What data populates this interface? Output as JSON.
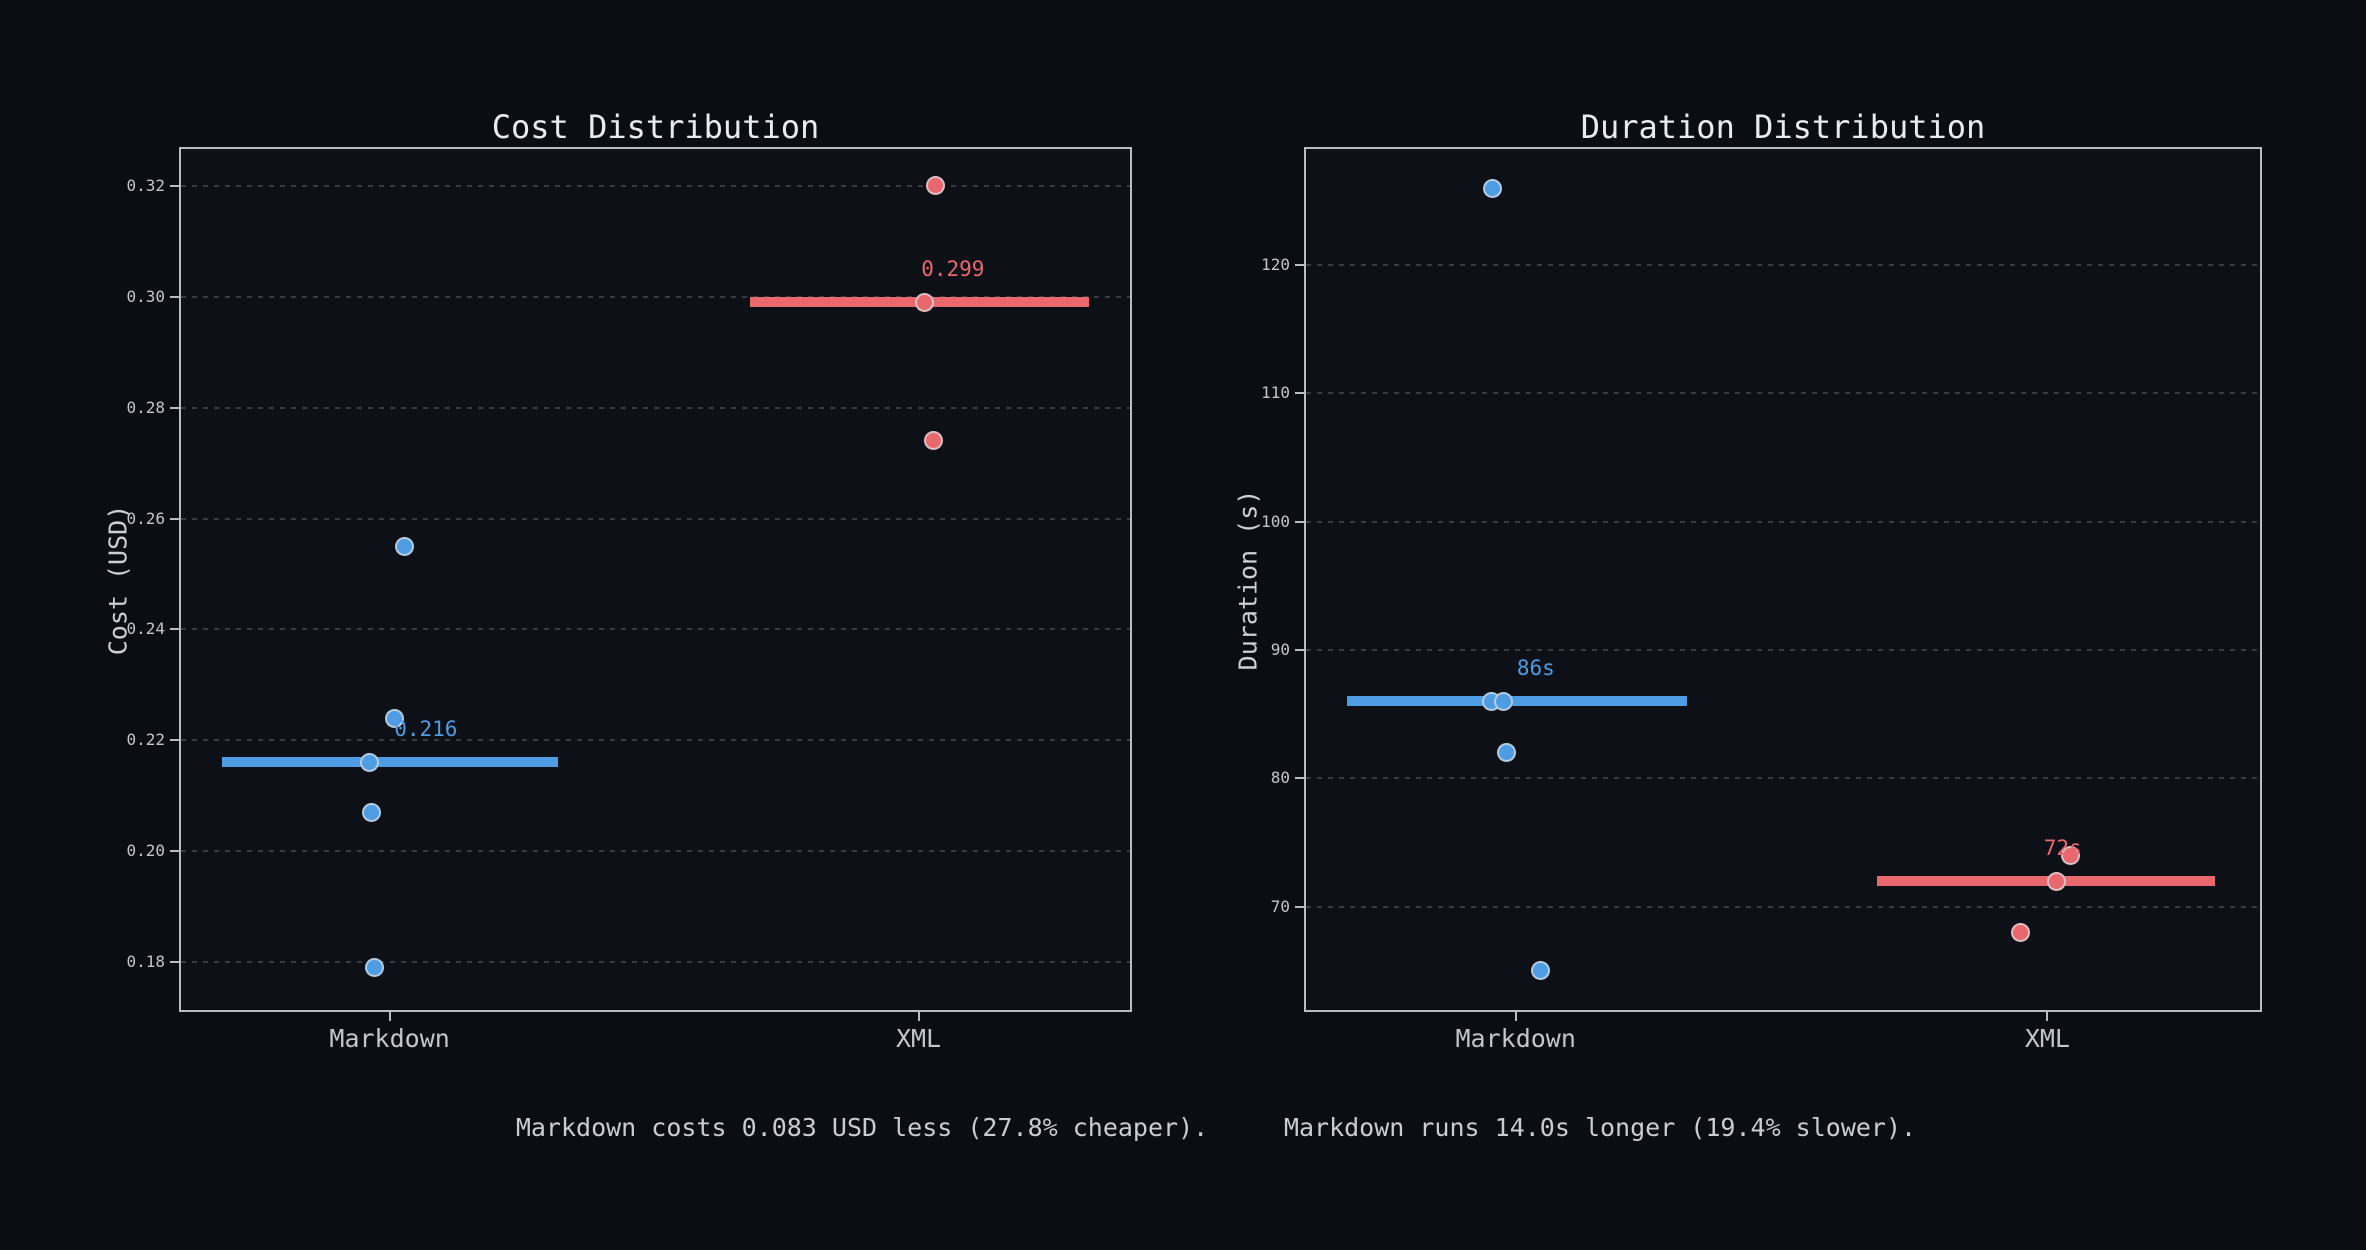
{
  "colors": {
    "figure_bg": "#0a0d12",
    "axes_bg": "#0d1117",
    "spine": "#b9bdc2",
    "grid": "#3b4046",
    "title": "#e9ecee",
    "tick_label": "#c2c6ca",
    "axis_label": "#ccd0d3",
    "summary_text": "#c9cdd0",
    "blue": "#4d9ce4",
    "red": "#e8686d",
    "point_border": "#d8dcdf"
  },
  "summary": {
    "cost_text": "Markdown costs 0.083 USD less (27.8% cheaper).",
    "duration_text": "Markdown runs 14.0s longer (19.4% slower)."
  },
  "chart_data": [
    {
      "type": "scatter",
      "title": "Cost Distribution",
      "ylabel": "Cost (USD)",
      "xlabel": "",
      "grid": true,
      "legend": "none",
      "ylim": [
        0.171,
        0.327
      ],
      "yticks": [
        {
          "value": 0.32,
          "label": "0.32"
        },
        {
          "value": 0.3,
          "label": "0.30"
        },
        {
          "value": 0.28,
          "label": "0.28"
        },
        {
          "value": 0.26,
          "label": "0.26"
        },
        {
          "value": 0.24,
          "label": "0.24"
        },
        {
          "value": 0.22,
          "label": "0.22"
        },
        {
          "value": 0.2,
          "label": "0.20"
        },
        {
          "value": 0.18,
          "label": "0.18"
        }
      ],
      "categories": [
        {
          "label": "Markdown",
          "x": 0.221
        },
        {
          "label": "XML",
          "x": 0.776
        }
      ],
      "series": [
        {
          "name": "Markdown",
          "color": "blue",
          "points": [
            {
              "value": 0.255,
              "x": 0.237
            },
            {
              "value": 0.224,
              "x": 0.226
            },
            {
              "value": 0.216,
              "x": 0.2
            },
            {
              "value": 0.207,
              "x": 0.202
            },
            {
              "value": 0.179,
              "x": 0.205
            }
          ],
          "median": {
            "value": 0.216,
            "label": "0.216",
            "x_start": 0.045,
            "x_end": 0.398,
            "label_x": 0.259
          }
        },
        {
          "name": "XML",
          "color": "red",
          "points": [
            {
              "value": 0.32,
              "x": 0.794
            },
            {
              "value": 0.299,
              "x": 0.782
            },
            {
              "value": 0.274,
              "x": 0.792
            }
          ],
          "median": {
            "value": 0.299,
            "label": "0.299",
            "x_start": 0.599,
            "x_end": 0.955,
            "label_x": 0.812
          }
        }
      ]
    },
    {
      "type": "scatter",
      "title": "Duration Distribution",
      "ylabel": "Duration (s)",
      "xlabel": "",
      "grid": true,
      "legend": "none",
      "ylim": [
        61.8,
        129.2
      ],
      "yticks": [
        {
          "value": 120,
          "label": "120"
        },
        {
          "value": 110,
          "label": "110"
        },
        {
          "value": 100,
          "label": "100"
        },
        {
          "value": 90,
          "label": "90"
        },
        {
          "value": 80,
          "label": "80"
        },
        {
          "value": 70,
          "label": "70"
        }
      ],
      "categories": [
        {
          "label": "Markdown",
          "x": 0.221
        },
        {
          "label": "XML",
          "x": 0.776
        }
      ],
      "series": [
        {
          "name": "Markdown",
          "color": "blue",
          "points": [
            {
              "value": 126,
              "x": 0.197
            },
            {
              "value": 86,
              "x": 0.196
            },
            {
              "value": 86,
              "x": 0.208
            },
            {
              "value": 82,
              "x": 0.211
            },
            {
              "value": 65,
              "x": 0.247
            }
          ],
          "median": {
            "value": 86,
            "label": "86s",
            "x_start": 0.045,
            "x_end": 0.4,
            "label_x": 0.242
          }
        },
        {
          "name": "XML",
          "color": "red",
          "points": [
            {
              "value": 74,
              "x": 0.8
            },
            {
              "value": 72,
              "x": 0.786
            },
            {
              "value": 68,
              "x": 0.748
            }
          ],
          "median": {
            "value": 72,
            "label": "72s",
            "x_start": 0.598,
            "x_end": 0.951,
            "label_x": 0.792
          }
        }
      ]
    }
  ]
}
